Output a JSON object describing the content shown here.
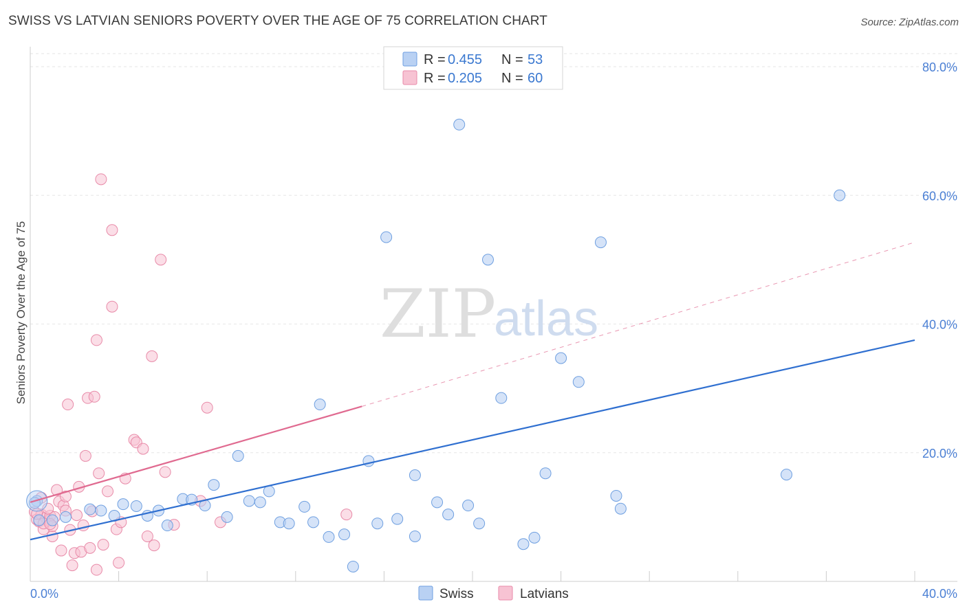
{
  "header": {
    "title": "SWISS VS LATVIAN SENIORS POVERTY OVER THE AGE OF 75 CORRELATION CHART",
    "source": "Source: ZipAtlas.com"
  },
  "watermark": {
    "zip": "ZIP",
    "atlas": "atlas"
  },
  "colors": {
    "swiss_fill": "#b9d1f3",
    "swiss_stroke": "#6e9fe0",
    "swiss_line": "#2f6fd0",
    "latvian_fill": "#f7c3d3",
    "latvian_stroke": "#e88aa8",
    "latvian_line": "#e06a90",
    "grid": "#e6e6e6",
    "tick_label": "#4a7fd4"
  },
  "legend": {
    "rows": [
      {
        "r_label": "R = ",
        "r_value": "0.455",
        "n_label": "N = ",
        "n_value": "53"
      },
      {
        "r_label": "R = ",
        "r_value": "0.205",
        "n_label": "N = ",
        "n_value": "60"
      }
    ]
  },
  "chart_data": {
    "type": "scatter",
    "title": "SWISS VS LATVIAN SENIORS POVERTY OVER THE AGE OF 75 CORRELATION CHART",
    "xlabel": "",
    "ylabel": "Seniors Poverty Over the Age of 75",
    "xlim": [
      0,
      40
    ],
    "ylim": [
      0,
      80
    ],
    "x_tick_labels": [
      "0.0%",
      "40.0%"
    ],
    "y_ticks": [
      20,
      40,
      60,
      80
    ],
    "y_tick_labels": [
      "20.0%",
      "40.0%",
      "60.0%",
      "80.0%"
    ],
    "grid": true,
    "legend_position": "top-center",
    "series": [
      {
        "name": "Swiss",
        "r": 0.455,
        "n": 53,
        "trend": {
          "x0": 0,
          "y0": 6.5,
          "x1": 40,
          "y1": 37.5
        },
        "points": [
          [
            0.3,
            12.5
          ],
          [
            1.0,
            9.5
          ],
          [
            1.6,
            10.0
          ],
          [
            2.7,
            11.2
          ],
          [
            3.2,
            11.0
          ],
          [
            3.8,
            10.2
          ],
          [
            4.2,
            12.0
          ],
          [
            4.8,
            11.7
          ],
          [
            5.3,
            10.2
          ],
          [
            5.8,
            11.0
          ],
          [
            6.2,
            8.7
          ],
          [
            6.9,
            12.8
          ],
          [
            7.3,
            12.7
          ],
          [
            7.9,
            11.8
          ],
          [
            8.3,
            15.0
          ],
          [
            8.9,
            10.0
          ],
          [
            9.4,
            19.5
          ],
          [
            9.9,
            12.5
          ],
          [
            10.4,
            12.3
          ],
          [
            10.8,
            14.0
          ],
          [
            11.3,
            9.2
          ],
          [
            11.7,
            9.0
          ],
          [
            12.4,
            11.6
          ],
          [
            12.8,
            9.2
          ],
          [
            13.1,
            27.5
          ],
          [
            13.5,
            6.9
          ],
          [
            14.2,
            7.3
          ],
          [
            14.6,
            2.3
          ],
          [
            15.3,
            18.7
          ],
          [
            15.7,
            9.0
          ],
          [
            16.1,
            53.5
          ],
          [
            16.6,
            9.7
          ],
          [
            17.4,
            16.5
          ],
          [
            17.4,
            7.0
          ],
          [
            18.4,
            12.3
          ],
          [
            18.9,
            10.4
          ],
          [
            19.4,
            71.0
          ],
          [
            19.8,
            11.8
          ],
          [
            20.3,
            9.0
          ],
          [
            20.7,
            50.0
          ],
          [
            21.3,
            28.5
          ],
          [
            22.3,
            5.8
          ],
          [
            22.8,
            6.8
          ],
          [
            23.3,
            16.8
          ],
          [
            24.0,
            34.7
          ],
          [
            24.8,
            31.0
          ],
          [
            25.8,
            52.7
          ],
          [
            26.5,
            13.3
          ],
          [
            26.7,
            11.3
          ],
          [
            34.2,
            16.6
          ],
          [
            36.6,
            60.0
          ],
          [
            0.2,
            12.2
          ],
          [
            0.4,
            9.5
          ]
        ]
      },
      {
        "name": "Latvians",
        "r": 0.205,
        "n": 60,
        "trend": {
          "x0": 0,
          "y0": 12.3,
          "x1": 15.0,
          "y1": 27.2
        },
        "trend_dashed": {
          "x0": 15.0,
          "y0": 27.2,
          "x1": 40,
          "y1": 52.7
        },
        "points": [
          [
            0.2,
            10.8
          ],
          [
            0.3,
            9.6
          ],
          [
            0.4,
            9.3
          ],
          [
            0.5,
            10.4
          ],
          [
            0.6,
            8.1
          ],
          [
            0.7,
            9.9
          ],
          [
            0.8,
            9.4
          ],
          [
            0.9,
            10.2
          ],
          [
            1.0,
            7.0
          ],
          [
            1.1,
            10.0
          ],
          [
            1.2,
            14.2
          ],
          [
            1.3,
            12.4
          ],
          [
            1.4,
            4.8
          ],
          [
            1.5,
            11.8
          ],
          [
            1.6,
            11.0
          ],
          [
            1.7,
            27.5
          ],
          [
            1.8,
            8.0
          ],
          [
            1.9,
            2.5
          ],
          [
            2.0,
            4.4
          ],
          [
            2.1,
            10.3
          ],
          [
            2.2,
            14.7
          ],
          [
            2.3,
            4.6
          ],
          [
            2.4,
            8.7
          ],
          [
            2.5,
            19.5
          ],
          [
            2.6,
            28.5
          ],
          [
            2.7,
            5.2
          ],
          [
            2.8,
            10.9
          ],
          [
            2.9,
            28.7
          ],
          [
            3.0,
            37.5
          ],
          [
            3.0,
            1.8
          ],
          [
            3.1,
            16.8
          ],
          [
            3.2,
            62.5
          ],
          [
            3.3,
            5.7
          ],
          [
            3.5,
            14.0
          ],
          [
            3.7,
            54.6
          ],
          [
            3.7,
            42.7
          ],
          [
            3.9,
            8.1
          ],
          [
            4.0,
            2.9
          ],
          [
            4.1,
            9.2
          ],
          [
            4.3,
            16.0
          ],
          [
            4.7,
            22.0
          ],
          [
            4.8,
            21.6
          ],
          [
            5.1,
            20.6
          ],
          [
            5.3,
            7.0
          ],
          [
            5.5,
            35.0
          ],
          [
            5.6,
            5.6
          ],
          [
            5.9,
            50.0
          ],
          [
            6.1,
            17.0
          ],
          [
            6.5,
            8.8
          ],
          [
            7.7,
            12.5
          ],
          [
            8.0,
            27.0
          ],
          [
            8.6,
            9.2
          ],
          [
            14.3,
            10.4
          ],
          [
            0.5,
            13.0
          ],
          [
            1.0,
            8.6
          ],
          [
            0.8,
            11.3
          ],
          [
            0.6,
            9.0
          ],
          [
            1.6,
            13.2
          ],
          [
            0.3,
            10.5
          ],
          [
            0.9,
            8.9
          ]
        ]
      }
    ]
  },
  "bottom_legend": {
    "swiss": "Swiss",
    "latvians": "Latvians"
  }
}
